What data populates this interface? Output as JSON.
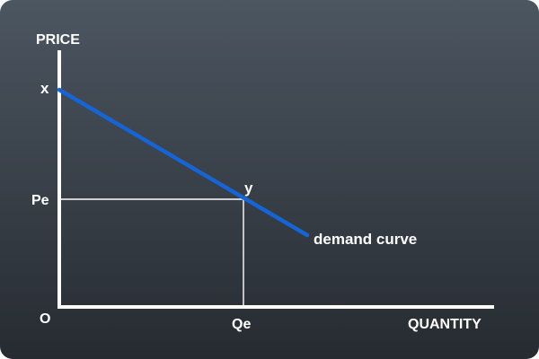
{
  "diagram": {
    "axes": {
      "y_label": "PRICE",
      "x_label": "QUANTITY",
      "origin_label": "O"
    },
    "points": {
      "intercept_label": "x",
      "equilibrium_label": "y",
      "price_label": "Pe",
      "quantity_label": "Qe"
    },
    "curve": {
      "label": "demand curve"
    },
    "colors": {
      "background_top": "#4c5661",
      "background_bottom": "#262b31",
      "axis": "#ffffff",
      "guide_lines": "#ffffff",
      "demand_curve": "#1565d8",
      "text": "#ffffff"
    }
  }
}
